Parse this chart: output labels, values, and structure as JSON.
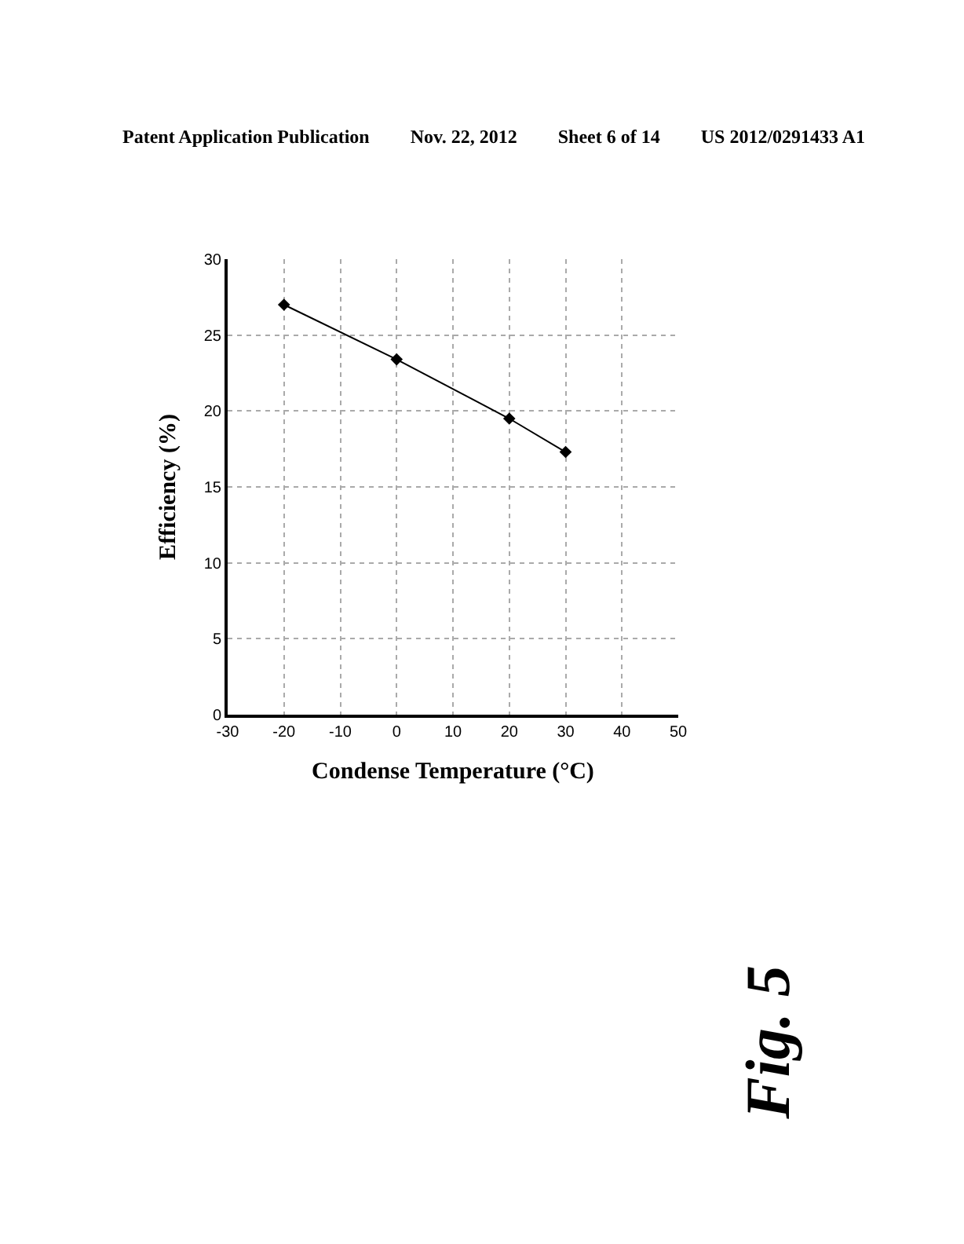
{
  "chart_data": {
    "type": "line",
    "xlabel": "Condense Temperature (°C)",
    "ylabel": "Efficiency (%)",
    "x": [
      -20,
      0,
      20,
      30
    ],
    "series": [
      {
        "color": "#000000",
        "values": [
          27.0,
          23.4,
          19.5,
          17.3
        ]
      }
    ],
    "xlim": [
      -30,
      50
    ],
    "ylim": [
      0,
      30
    ],
    "xticks": [
      -30,
      -20,
      -10,
      0,
      10,
      20,
      30,
      40,
      50
    ],
    "yticks": [
      0,
      5,
      10,
      15,
      20,
      25,
      30
    ],
    "grid": true,
    "marker": "diamond",
    "line_style": "solid",
    "annotations": [
      "Patent Application Publication",
      "Nov. 22, 2012",
      "Sheet 6 of 14",
      "US 2012/0291433 A1",
      "Fig. 5"
    ]
  }
}
